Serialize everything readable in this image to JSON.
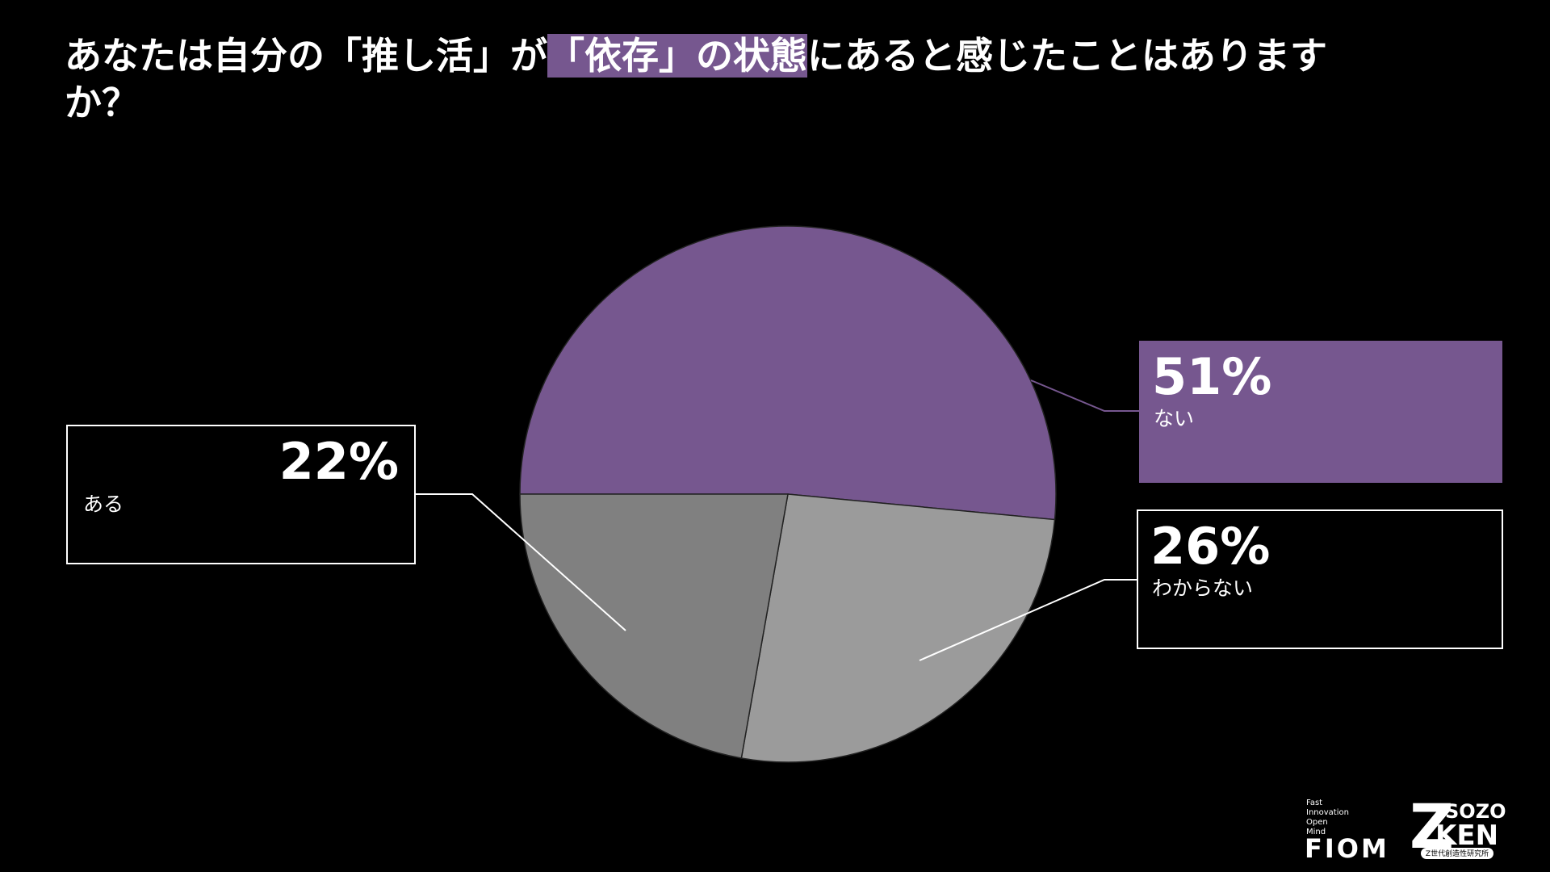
{
  "chart_data": {
    "type": "pie",
    "title": [
      "あなたは自分の「推し活」が",
      "「依存」の状態",
      "にあると感じたことはありますか？"
    ],
    "categories": [
      "ない",
      "わからない",
      "ある"
    ],
    "values": [
      51,
      26,
      22
    ],
    "value_labels": [
      "51%",
      "26%",
      "22%"
    ],
    "colors": [
      "#76578f",
      "#9b9b9b",
      "#808080"
    ],
    "start_angle": "left",
    "direction": "clockwise"
  },
  "branding": {
    "fiom_tagline": [
      "Fast",
      "Innovation",
      "Open",
      "Mind"
    ],
    "fiom": "FIOM",
    "sozo": "SOZO",
    "ken": "KEN",
    "sozo_sub": "Z世代創造性研究所"
  }
}
